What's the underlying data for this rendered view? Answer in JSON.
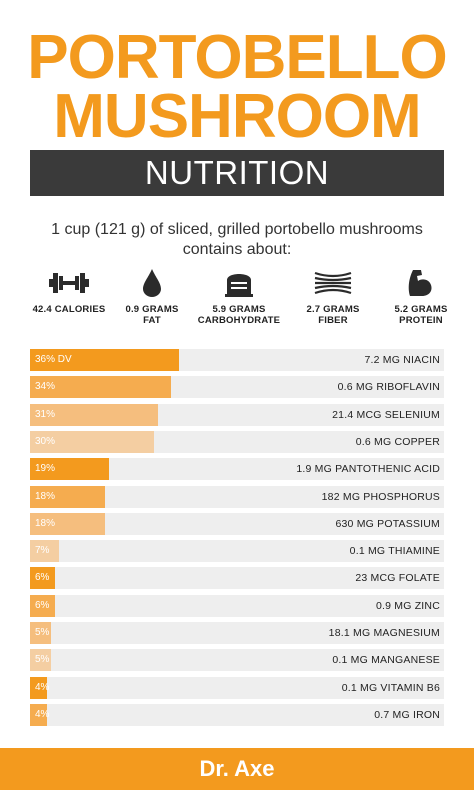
{
  "header": {
    "title_line1": "PORTOBELLO",
    "title_line2": "MUSHROOM",
    "subtitle": "NUTRITION"
  },
  "intro": {
    "line1": "1 cup (121 g) of sliced, grilled portobello mushrooms",
    "line2": "contains about:"
  },
  "stats": [
    {
      "icon": "dumbbell-icon",
      "line1": "42.4 CALORIES",
      "line2": ""
    },
    {
      "icon": "droplet-icon",
      "line1": "0.9 GRAMS",
      "line2": "FAT"
    },
    {
      "icon": "bread-icon",
      "line1": "5.9 GRAMS",
      "line2": "CARBOHYDRATE"
    },
    {
      "icon": "fiber-icon",
      "line1": "2.7 GRAMS",
      "line2": "FIBER"
    },
    {
      "icon": "flexed-arm-icon",
      "line1": "5.2 GRAMS",
      "line2": "PROTEIN"
    }
  ],
  "colors": {
    "brand_orange": "#F39A1E",
    "dark_band": "#3a3a3a",
    "track": "#eeeeee"
  },
  "chart_data": {
    "type": "bar",
    "orientation": "horizontal",
    "categories": [
      "7.2 MG NIACIN",
      "0.6 MG RIBOFLAVIN",
      "21.4 MCG SELENIUM",
      "0.6 MG COPPER",
      "1.9 MG PANTOTHENIC ACID",
      "182 MG PHOSPHORUS",
      "630 MG POTASSIUM",
      "0.1 MG THIAMINE",
      "23 MCG FOLATE",
      "0.9 MG ZINC",
      "18.1 MG MAGNESIUM",
      "0.1 MG MANGANESE",
      "0.1 MG VITAMIN B6",
      "0.7 MG IRON"
    ],
    "values": [
      36,
      34,
      31,
      30,
      19,
      18,
      18,
      7,
      6,
      6,
      5,
      5,
      4,
      4
    ],
    "labels": [
      "36% DV",
      "34%",
      "31%",
      "30%",
      "19%",
      "18%",
      "18%",
      "7%",
      "6%",
      "6%",
      "5%",
      "5%",
      "4%",
      "4%"
    ],
    "bar_colors": [
      "#F39A1E",
      "#F5AC4F",
      "#F5BE7E",
      "#F4CEA2",
      "#F39A1E",
      "#F5AC4F",
      "#F5BE7E",
      "#F4CEA2",
      "#F39A1E",
      "#F5AC4F",
      "#F5BE7E",
      "#F4CEA2",
      "#F39A1E",
      "#F5AC4F"
    ],
    "xlim": [
      0,
      100
    ],
    "title": "",
    "xlabel": "",
    "ylabel": ""
  },
  "footer": {
    "brand": "Dr. Axe"
  }
}
